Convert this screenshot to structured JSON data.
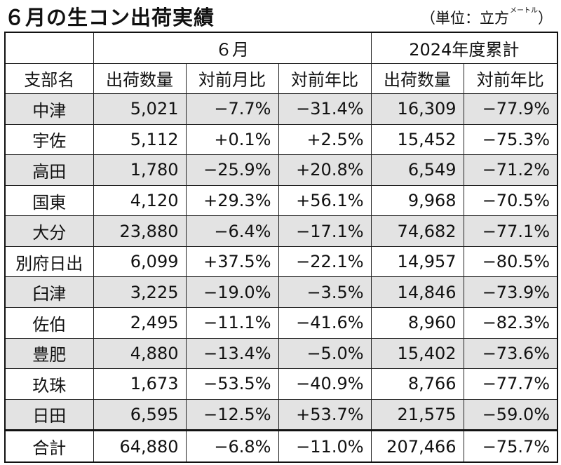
{
  "title": "６月の生コン出荷実績",
  "unit": {
    "prefix": "（単位：立方",
    "small": "メートル",
    "suffix": "）"
  },
  "header": {
    "month_group": "６月",
    "ytd_group": "2024年度累計",
    "col_branch": "支部名",
    "col_month_volume": "出荷数量",
    "col_month_mom": "対前月比",
    "col_month_yoy": "対前年比",
    "col_ytd_volume": "出荷数量",
    "col_ytd_yoy": "対前年比"
  },
  "rows": [
    {
      "branch": "中津",
      "month_volume": "5,021",
      "mom": "−7.7%",
      "yoy": "−31.4%",
      "ytd_volume": "16,309",
      "ytd_yoy": "−77.9%"
    },
    {
      "branch": "宇佐",
      "month_volume": "5,112",
      "mom": "+0.1%",
      "yoy": "+2.5%",
      "ytd_volume": "15,452",
      "ytd_yoy": "−75.3%"
    },
    {
      "branch": "高田",
      "month_volume": "1,780",
      "mom": "−25.9%",
      "yoy": "+20.8%",
      "ytd_volume": "6,549",
      "ytd_yoy": "−71.2%"
    },
    {
      "branch": "国東",
      "month_volume": "4,120",
      "mom": "+29.3%",
      "yoy": "+56.1%",
      "ytd_volume": "9,968",
      "ytd_yoy": "−70.5%"
    },
    {
      "branch": "大分",
      "month_volume": "23,880",
      "mom": "−6.4%",
      "yoy": "−17.1%",
      "ytd_volume": "74,682",
      "ytd_yoy": "−77.1%"
    },
    {
      "branch": "別府日出",
      "month_volume": "6,099",
      "mom": "+37.5%",
      "yoy": "−22.1%",
      "ytd_volume": "14,957",
      "ytd_yoy": "−80.5%"
    },
    {
      "branch": "臼津",
      "month_volume": "3,225",
      "mom": "−19.0%",
      "yoy": "−3.5%",
      "ytd_volume": "14,846",
      "ytd_yoy": "−73.9%"
    },
    {
      "branch": "佐伯",
      "month_volume": "2,495",
      "mom": "−11.1%",
      "yoy": "−41.6%",
      "ytd_volume": "8,960",
      "ytd_yoy": "−82.3%"
    },
    {
      "branch": "豊肥",
      "month_volume": "4,880",
      "mom": "−13.4%",
      "yoy": "−5.0%",
      "ytd_volume": "15,402",
      "ytd_yoy": "−73.6%"
    },
    {
      "branch": "玖珠",
      "month_volume": "1,673",
      "mom": "−53.5%",
      "yoy": "−40.9%",
      "ytd_volume": "8,766",
      "ytd_yoy": "−77.7%"
    },
    {
      "branch": "日田",
      "month_volume": "6,595",
      "mom": "−12.5%",
      "yoy": "+53.7%",
      "ytd_volume": "21,575",
      "ytd_yoy": "−59.0%"
    }
  ],
  "total": {
    "branch": "合計",
    "month_volume": "64,880",
    "mom": "−6.8%",
    "yoy": "−11.0%",
    "ytd_volume": "207,466",
    "ytd_yoy": "−75.7%"
  },
  "colors": {
    "shaded_row": "#e3e3e3",
    "border": "#222222"
  }
}
